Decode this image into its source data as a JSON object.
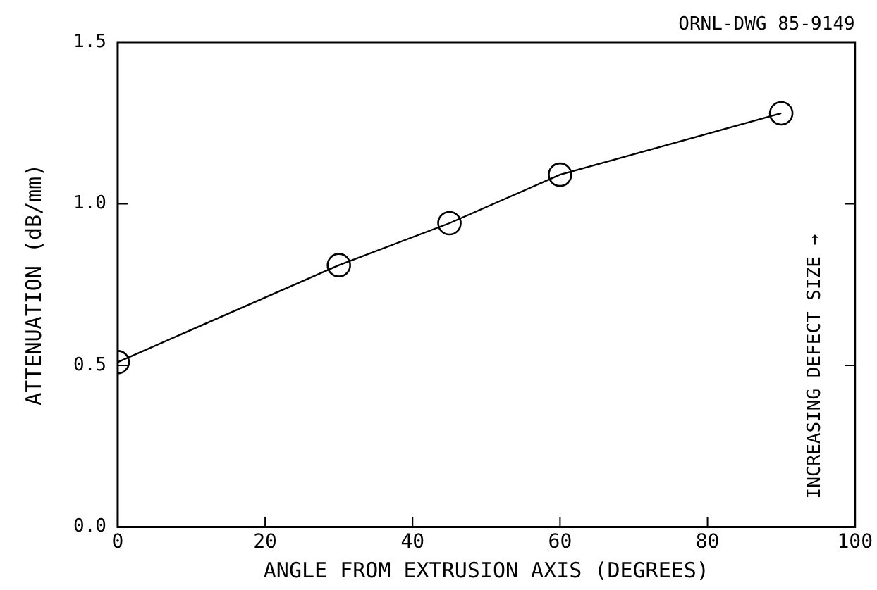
{
  "chart_data": {
    "type": "line",
    "xlabel": "ANGLE FROM EXTRUSION AXIS (DEGREES)",
    "ylabel": "ATTENUATION (dB/mm)",
    "annotations": [
      "ORNL-DWG 85-9149",
      "INCREASING DEFECT SIZE →"
    ],
    "x": [
      0,
      30,
      45,
      60,
      90
    ],
    "series": [
      {
        "color": "#000000",
        "values": [
          0.51,
          0.81,
          0.94,
          1.09,
          1.28
        ]
      }
    ],
    "xlim": [
      0,
      100
    ],
    "xticks": [
      0,
      20,
      40,
      60,
      80,
      100
    ],
    "ylim": [
      0,
      1.5
    ],
    "yticks": [
      {
        "value": 0,
        "label": "0.0"
      },
      {
        "value": 0.5,
        "label": "0.5"
      },
      {
        "value": 1,
        "label": "1.0"
      },
      {
        "value": 1.5,
        "label": "1.5"
      }
    ],
    "grid": false,
    "legend": false,
    "marker": "circle",
    "line_style": "solid"
  }
}
